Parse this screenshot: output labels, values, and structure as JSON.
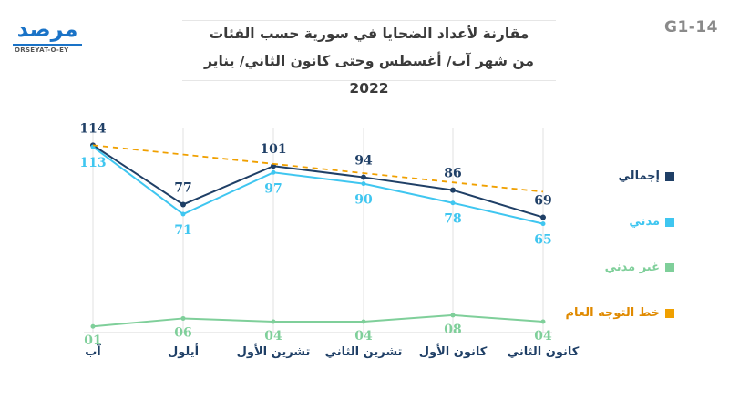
{
  "header": {
    "code": "G1-14",
    "title_line1": "مقارنة لأعداد الضحايا في سورية حسب الفئات",
    "title_line2": "من شهر آب/ أغسطس وحتى كانون الثاني/ يناير 2022"
  },
  "logo": {
    "word": "مرصد",
    "sub": "ORSEYAT-O-EY",
    "colors": {
      "primary": "#1a73c7",
      "accent": "#e53935"
    }
  },
  "chart_data": {
    "type": "line",
    "categories": [
      "آب",
      "أيلول",
      "تشرين الأول",
      "تشرين الثاني",
      "كانون الأول",
      "كانون الثاني"
    ],
    "series": [
      {
        "name": "إجمالي",
        "values": [
          114,
          77,
          101,
          94,
          86,
          69
        ],
        "labels": [
          "114",
          "77",
          "101",
          "94",
          "86",
          "69"
        ],
        "color": "#1f3f66"
      },
      {
        "name": "مدني",
        "values": [
          113,
          71,
          97,
          90,
          78,
          65
        ],
        "labels": [
          "113",
          "71",
          "97",
          "90",
          "78",
          "65"
        ],
        "color": "#3fc6f0"
      },
      {
        "name": "غير مدني",
        "values": [
          1,
          6,
          4,
          4,
          8,
          4
        ],
        "labels": [
          "01",
          "06",
          "04",
          "04",
          "08",
          "04"
        ],
        "color": "#7fcf9a"
      },
      {
        "name": "خط التوجه العام",
        "values": [
          114,
          108.2,
          102.4,
          96.6,
          90.8,
          85
        ],
        "labels": [],
        "color": "#f0a000",
        "dashed": true
      }
    ],
    "ylim": [
      0,
      125
    ],
    "grid": "vertical",
    "legend": "right"
  }
}
